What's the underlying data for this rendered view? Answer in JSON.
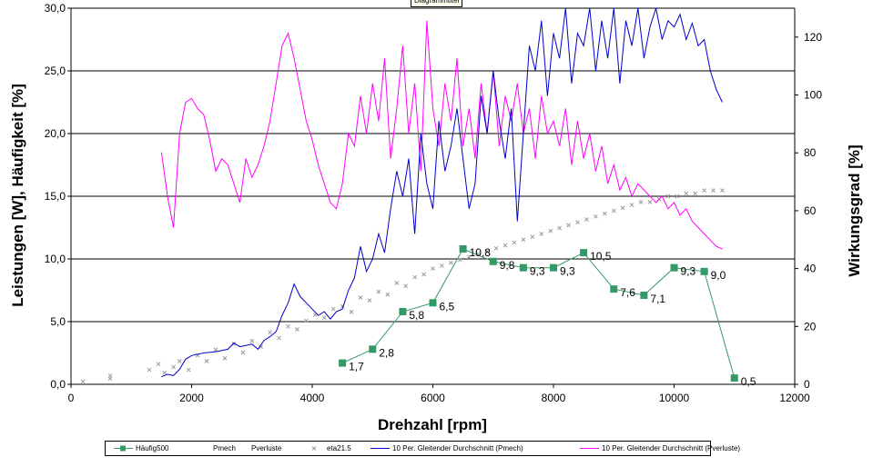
{
  "chart_data": {
    "type": "line",
    "title": "Diagrammtitel",
    "xlabel": "Drehzahl [rpm]",
    "ylabel": "Leistungen [W], Häufigkeit [%]",
    "y2label": "Wirkungsgrad [%]",
    "xlim": [
      0,
      12000
    ],
    "ylim": [
      0,
      30
    ],
    "y2lim": [
      0,
      130
    ],
    "x_ticks": [
      "0",
      "2000",
      "4000",
      "6000",
      "8000",
      "10000",
      "12000"
    ],
    "y_ticks": [
      "0,0",
      "5,0",
      "10,0",
      "15,0",
      "20,0",
      "25,0",
      "30,0"
    ],
    "y2_ticks": [
      "0",
      "20",
      "40",
      "60",
      "80",
      "100",
      "120"
    ],
    "grid": "horizontal",
    "legend_position": "bottom",
    "colors": {
      "haeufig": "#339966",
      "eta": "#999999",
      "pmech_avg": "#0000cc",
      "pverluste_avg": "#ff00ff"
    },
    "series": [
      {
        "name": "Häufig500",
        "axis": "left",
        "x": [
          4500,
          5000,
          5500,
          6000,
          6500,
          7000,
          7500,
          8000,
          8500,
          9000,
          9500,
          10000,
          10500,
          11000
        ],
        "values": [
          1.7,
          2.8,
          5.8,
          6.5,
          10.8,
          9.8,
          9.3,
          9.3,
          10.5,
          7.6,
          7.1,
          9.3,
          9.0,
          0.5
        ],
        "labels": [
          "1,7",
          "2,8",
          "5,8",
          "6,5",
          "10,8",
          "9,8",
          "9,3",
          "9,3",
          "10,5",
          "7,6",
          "7,1",
          "9,3",
          "9,0",
          "0,5"
        ]
      },
      {
        "name": "Pmech",
        "axis": "left",
        "x": [],
        "values": []
      },
      {
        "name": "Pverluste",
        "axis": "left",
        "x": [],
        "values": []
      },
      {
        "name": "eta21.5",
        "axis": "right",
        "marker": "x",
        "x": [
          200,
          650,
          650,
          1300,
          1450,
          1550,
          1700,
          1800,
          1950,
          2100,
          2250,
          2400,
          2550,
          2700,
          2850,
          3000,
          3150,
          3300,
          3450,
          3600,
          3750,
          3900,
          4050,
          4200,
          4350,
          4500,
          4650,
          4800,
          4950,
          5100,
          5250,
          5400,
          5550,
          5700,
          5850,
          6000,
          6150,
          6300,
          6450,
          6600,
          6750,
          6900,
          7050,
          7200,
          7350,
          7500,
          7650,
          7800,
          7950,
          8100,
          8250,
          8400,
          8550,
          8700,
          8850,
          9000,
          9150,
          9300,
          9450,
          9600,
          9750,
          9900,
          10050,
          10200,
          10350,
          10500,
          10650,
          10800
        ],
        "values": [
          1,
          3,
          2,
          5,
          7,
          4,
          6,
          8,
          5,
          10,
          8,
          12,
          9,
          14,
          11,
          15,
          13,
          18,
          16,
          20,
          19,
          22,
          24,
          23,
          26,
          27,
          25,
          30,
          29,
          32,
          31,
          35,
          34,
          37,
          38,
          40,
          41,
          42,
          43,
          44,
          45,
          46,
          47,
          48,
          49,
          50,
          51,
          52,
          53,
          54,
          55,
          56,
          57,
          58,
          59,
          60,
          61,
          62,
          63,
          63,
          64,
          65,
          65,
          66,
          66,
          67,
          67,
          67
        ]
      },
      {
        "name": "10 Per. Gleitender Durchschnitt (Pmech)",
        "axis": "left",
        "x": [
          1500,
          1600,
          1700,
          1800,
          1900,
          2000,
          2200,
          2400,
          2600,
          2700,
          2800,
          3000,
          3100,
          3200,
          3300,
          3400,
          3500,
          3600,
          3700,
          3800,
          3900,
          4000,
          4100,
          4200,
          4300,
          4400,
          4500,
          4600,
          4700,
          4800,
          4900,
          5000,
          5100,
          5200,
          5300,
          5400,
          5500,
          5600,
          5700,
          5800,
          5900,
          6000,
          6100,
          6200,
          6300,
          6400,
          6500,
          6600,
          6700,
          6800,
          6900,
          7000,
          7100,
          7200,
          7300,
          7400,
          7600,
          7700,
          7800,
          7900,
          8000,
          8100,
          8200,
          8300,
          8400,
          8500,
          8600,
          8700,
          8800,
          8900,
          9000,
          9100,
          9200,
          9300,
          9400,
          9500,
          9600,
          9700,
          9800,
          9900,
          10000,
          10100,
          10200,
          10300,
          10400,
          10500,
          10600,
          10700,
          10800
        ],
        "values": [
          0.6,
          0.8,
          0.7,
          1.2,
          2.0,
          2.3,
          2.5,
          2.6,
          2.8,
          3.3,
          3.0,
          3.2,
          2.8,
          3.5,
          3.8,
          4.2,
          5.5,
          6.5,
          8.0,
          7.0,
          6.5,
          6.0,
          5.5,
          5.8,
          5.2,
          5.8,
          6.0,
          7.5,
          8.5,
          11.0,
          9.0,
          10.0,
          12.0,
          10.5,
          14.0,
          17.0,
          15.0,
          18.0,
          12.0,
          20.0,
          16.0,
          14.0,
          21.0,
          17.0,
          19.0,
          22.0,
          18.0,
          14.0,
          16.0,
          23.0,
          20.0,
          25.0,
          21.0,
          18.0,
          22.0,
          13.0,
          27.0,
          25.0,
          29.0,
          23.0,
          28.0,
          26.0,
          30.0,
          24.0,
          28.0,
          27.0,
          30.0,
          25.0,
          29.0,
          26.0,
          30.0,
          24.0,
          29.0,
          27.0,
          30.0,
          26.0,
          28.5,
          30.0,
          27.5,
          29.0,
          28.5,
          29.5,
          27.5,
          28.8,
          27.0,
          27.5,
          25.0,
          23.5,
          22.5
        ]
      },
      {
        "name": "10 Per. Gleitender Durchschnitt (Pverluste)",
        "axis": "left",
        "x": [
          1500,
          1600,
          1700,
          1800,
          1900,
          2000,
          2100,
          2200,
          2300,
          2400,
          2500,
          2600,
          2700,
          2800,
          2900,
          3000,
          3100,
          3200,
          3300,
          3400,
          3500,
          3600,
          3700,
          3800,
          3900,
          4000,
          4100,
          4200,
          4300,
          4400,
          4500,
          4600,
          4700,
          4800,
          4900,
          5000,
          5100,
          5200,
          5300,
          5400,
          5500,
          5600,
          5700,
          5800,
          5900,
          6000,
          6100,
          6200,
          6300,
          6400,
          6500,
          6600,
          6700,
          6800,
          6900,
          7000,
          7100,
          7200,
          7300,
          7400,
          7500,
          7600,
          7700,
          7800,
          7900,
          8000,
          8100,
          8200,
          8300,
          8400,
          8500,
          8600,
          8700,
          8800,
          8900,
          9000,
          9100,
          9200,
          9300,
          9400,
          9500,
          9600,
          9700,
          9800,
          9900,
          10000,
          10100,
          10200,
          10300,
          10400,
          10500,
          10600,
          10700,
          10800
        ],
        "values": [
          18.5,
          15.0,
          12.5,
          20.0,
          22.5,
          22.8,
          22.0,
          21.5,
          19.5,
          17.0,
          18.0,
          17.5,
          16.0,
          14.5,
          18.0,
          16.5,
          17.5,
          19.0,
          21.0,
          24.0,
          27.0,
          28.0,
          26.0,
          23.5,
          21.0,
          19.5,
          17.5,
          16.0,
          14.5,
          14.0,
          16.0,
          20.0,
          19.0,
          23.0,
          20.0,
          24.0,
          21.0,
          26.0,
          18.0,
          22.0,
          27.0,
          20.0,
          24.0,
          17.0,
          29.0,
          22.0,
          19.0,
          24.0,
          21.0,
          26.0,
          19.0,
          22.0,
          18.0,
          24.0,
          20.0,
          25.0,
          19.0,
          23.0,
          21.0,
          24.0,
          20.0,
          22.0,
          18.0,
          23.0,
          20.0,
          21.0,
          19.0,
          22.0,
          17.5,
          21.0,
          18.0,
          20.0,
          17.0,
          19.0,
          16.0,
          17.5,
          15.5,
          16.5,
          15.0,
          16.0,
          15.5,
          15.0,
          14.5,
          15.0,
          14.0,
          14.5,
          13.5,
          14.0,
          13.0,
          12.5,
          12.0,
          11.5,
          11.0,
          10.8
        ]
      }
    ]
  }
}
